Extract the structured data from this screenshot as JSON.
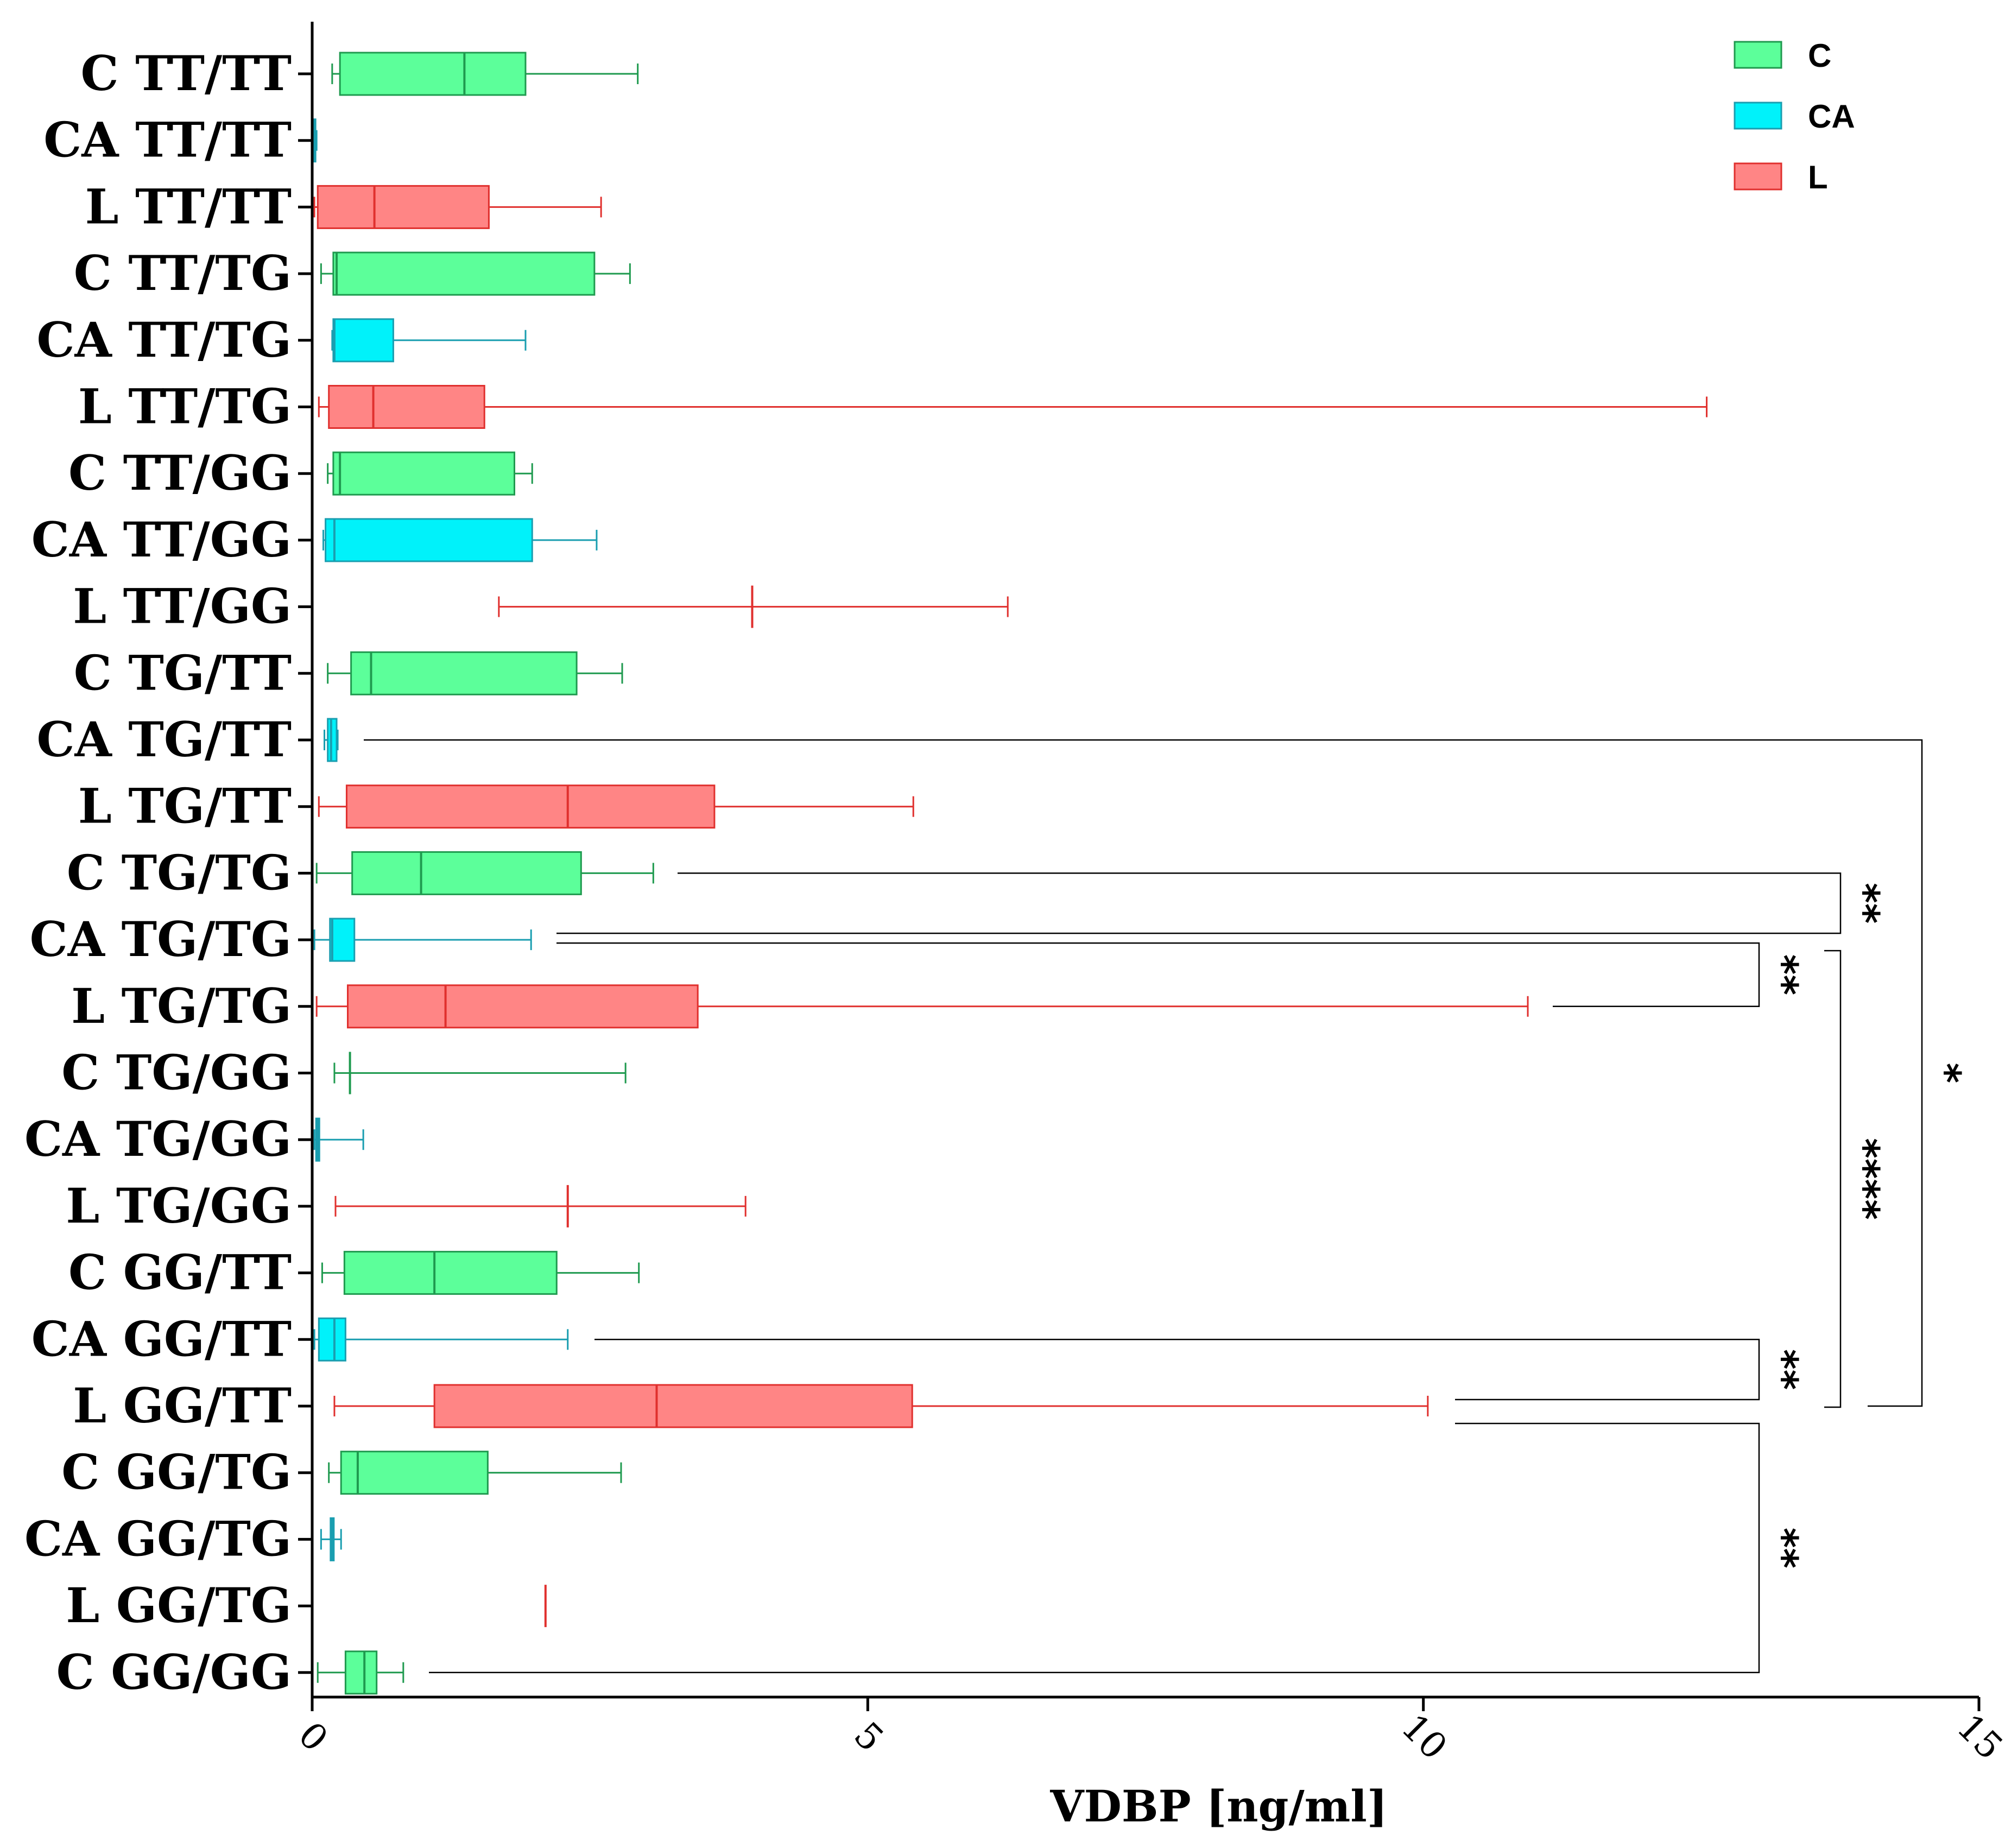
{
  "chart_data": {
    "type": "boxplot",
    "orientation": "horizontal",
    "title": "",
    "xlabel": "VDBP [ng/ml]",
    "ylabel": "",
    "xlim": [
      0,
      15
    ],
    "xticks": [
      0,
      5,
      10,
      15
    ],
    "tick_labels": [
      "0",
      "5",
      "10",
      "15"
    ],
    "legend": {
      "position": "top-right",
      "entries": [
        {
          "name": "C",
          "fill": "#5CFF9A",
          "stroke": "#1F9A4F"
        },
        {
          "name": "CA",
          "fill": "#00F2FA",
          "stroke": "#1A9EB0"
        },
        {
          "name": "L",
          "fill": "#FF8585",
          "stroke": "#E0302E"
        }
      ]
    },
    "group_colors": {
      "C": {
        "fill": "#5CFF9A",
        "stroke": "#1F9A4F"
      },
      "CA": {
        "fill": "#00F2FA",
        "stroke": "#1A9EB0"
      },
      "L": {
        "fill": "#FF8585",
        "stroke": "#E0302E"
      }
    },
    "categories": [
      {
        "label": "C TT/TT",
        "group": "C",
        "min": 0.18,
        "q1": 0.25,
        "median": 1.37,
        "q3": 1.92,
        "max": 2.93
      },
      {
        "label": "CA TT/TT",
        "group": "CA",
        "min": 0.01,
        "q1": 0.01,
        "median": 0.02,
        "q3": 0.03,
        "max": 0.04
      },
      {
        "label": "L TT/TT",
        "group": "L",
        "min": 0.02,
        "q1": 0.05,
        "median": 0.56,
        "q3": 1.59,
        "max": 2.6
      },
      {
        "label": "C TT/TG",
        "group": "C",
        "min": 0.08,
        "q1": 0.19,
        "median": 0.22,
        "q3": 2.54,
        "max": 2.86
      },
      {
        "label": "CA TT/TG",
        "group": "CA",
        "min": 0.18,
        "q1": 0.19,
        "median": 0.2,
        "q3": 0.73,
        "max": 1.92
      },
      {
        "label": "L TT/TG",
        "group": "L",
        "min": 0.06,
        "q1": 0.15,
        "median": 0.55,
        "q3": 1.55,
        "max": 12.55
      },
      {
        "label": "C TT/GG",
        "group": "C",
        "min": 0.14,
        "q1": 0.19,
        "median": 0.25,
        "q3": 1.82,
        "max": 1.98
      },
      {
        "label": "CA TT/GG",
        "group": "CA",
        "min": 0.1,
        "q1": 0.12,
        "median": 0.2,
        "q3": 1.98,
        "max": 2.56
      },
      {
        "label": "L TT/GG",
        "group": "L",
        "min": 1.68,
        "q1": 3.96,
        "median": 3.96,
        "q3": 3.96,
        "max": 6.26
      },
      {
        "label": "C TG/TT",
        "group": "C",
        "min": 0.14,
        "q1": 0.35,
        "median": 0.53,
        "q3": 2.38,
        "max": 2.79
      },
      {
        "label": "CA TG/TT",
        "group": "CA",
        "min": 0.11,
        "q1": 0.14,
        "median": 0.17,
        "q3": 0.22,
        "max": 0.23
      },
      {
        "label": "L TG/TT",
        "group": "L",
        "min": 0.06,
        "q1": 0.31,
        "median": 2.3,
        "q3": 3.62,
        "max": 5.41
      },
      {
        "label": "C TG/TG",
        "group": "C",
        "min": 0.04,
        "q1": 0.36,
        "median": 0.98,
        "q3": 2.42,
        "max": 3.07
      },
      {
        "label": "CA TG/TG",
        "group": "CA",
        "min": 0.02,
        "q1": 0.16,
        "median": 0.18,
        "q3": 0.38,
        "max": 1.97
      },
      {
        "label": "L TG/TG",
        "group": "L",
        "min": 0.04,
        "q1": 0.32,
        "median": 1.2,
        "q3": 3.47,
        "max": 10.94
      },
      {
        "label": "C TG/GG ",
        "group": "C",
        "min": 0.2,
        "q1": 0.34,
        "median": 0.34,
        "q3": 0.34,
        "max": 2.82
      },
      {
        "label": "CA TG/GG",
        "group": "CA",
        "min": 0.02,
        "q1": 0.05,
        "median": 0.05,
        "q3": 0.05,
        "max": 0.46
      },
      {
        "label": "L TG/GG",
        "group": "L",
        "min": 0.21,
        "q1": 2.3,
        "median": 2.3,
        "q3": 2.3,
        "max": 3.9
      },
      {
        "label": "C GG/TT",
        "group": "C",
        "min": 0.09,
        "q1": 0.29,
        "median": 1.1,
        "q3": 2.2,
        "max": 2.94
      },
      {
        "label": "CA GG/TT",
        "group": "CA",
        "min": 0.02,
        "q1": 0.06,
        "median": 0.2,
        "q3": 0.3,
        "max": 2.3
      },
      {
        "label": "L GG/TT",
        "group": "L",
        "min": 0.2,
        "q1": 1.1,
        "median": 3.1,
        "q3": 5.4,
        "max": 10.04
      },
      {
        "label": "C GG/TG",
        "group": "C",
        "min": 0.15,
        "q1": 0.26,
        "median": 0.41,
        "q3": 1.58,
        "max": 2.78
      },
      {
        "label": "CA GG/TG",
        "group": "CA",
        "min": 0.08,
        "q1": 0.18,
        "median": 0.18,
        "q3": 0.18,
        "max": 0.26
      },
      {
        "label": "L GG/TG",
        "group": "L",
        "min": 2.1,
        "q1": 2.1,
        "median": 2.1,
        "q3": 2.1,
        "max": 2.1
      },
      {
        "label": "C GG/GG",
        "group": "C",
        "min": 0.05,
        "q1": 0.3,
        "median": 0.47,
        "q3": 0.58,
        "max": 0.82
      }
    ],
    "significance": [
      {
        "from": "C TG/TG",
        "to": "CA TG/TG",
        "label": "**"
      },
      {
        "from": "CA TG/TG",
        "to": "L TG/TG",
        "label": "**"
      },
      {
        "from": "CA GG/TT",
        "to": "L GG/TT",
        "label": "**"
      },
      {
        "from": "L GG/TT",
        "to": "C GG/GG",
        "label": "**"
      },
      {
        "from": "CA TG/TG",
        "to": "L GG/TT",
        "label": "****"
      },
      {
        "from": "CA TG/TT",
        "to": "L GG/TT",
        "label": "*"
      }
    ]
  }
}
